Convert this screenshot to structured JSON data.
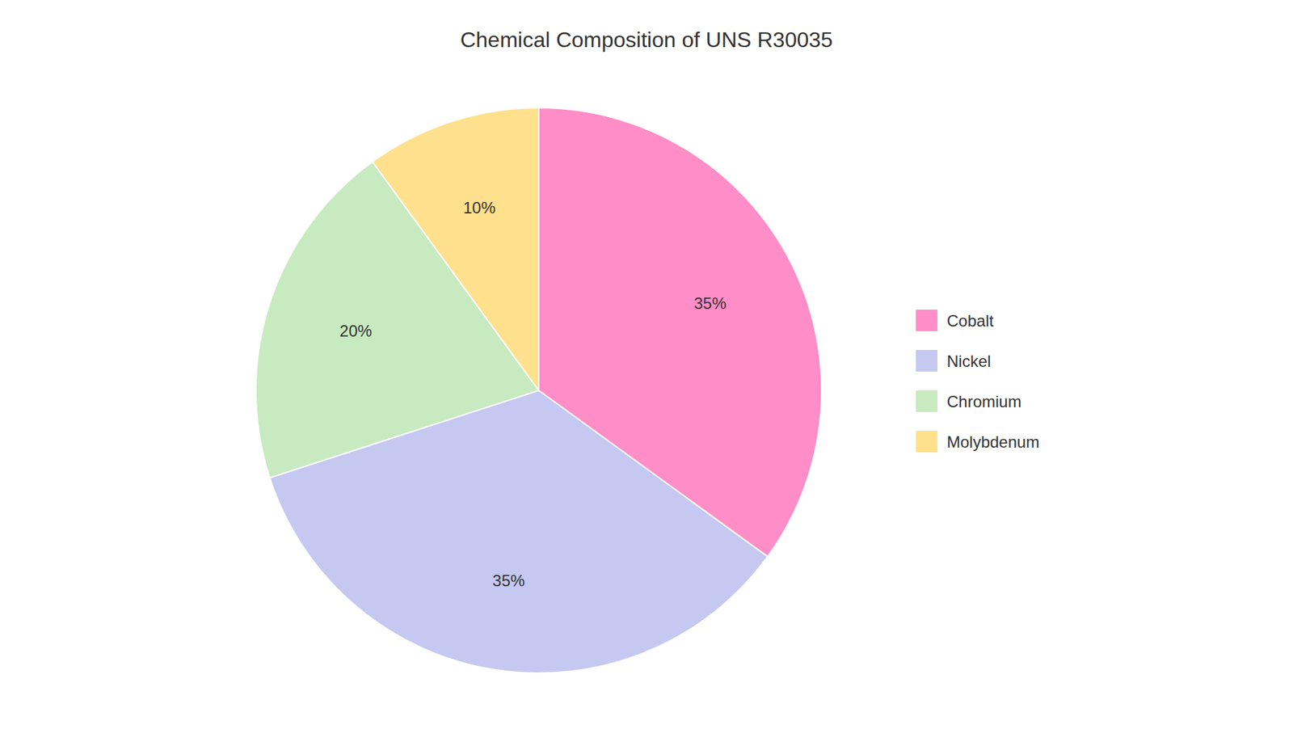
{
  "chart_data": {
    "type": "pie",
    "title": "Chemical Composition of UNS R30035",
    "categories": [
      "Cobalt",
      "Nickel",
      "Chromium",
      "Molybdenum"
    ],
    "values": [
      35,
      35,
      20,
      10
    ],
    "value_labels": [
      "35%",
      "35%",
      "20%",
      "10%"
    ],
    "colors": [
      "#FF8DC7",
      "#C5C8F0",
      "#C8EAC0",
      "#FFE08C"
    ],
    "data_labels": true,
    "legend": "right"
  }
}
